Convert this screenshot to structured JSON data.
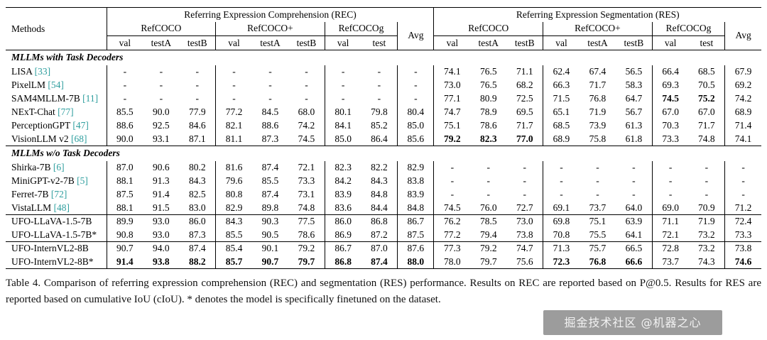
{
  "colors": {
    "cite": "#2e9e9e"
  },
  "table": {
    "header": {
      "methods": "Methods",
      "rec": "Referring Expression Comprehension (REC)",
      "res": "Referring Expression Segmentation (RES)",
      "groups": [
        "RefCOCO",
        "RefCOCO+",
        "RefCOCOg"
      ],
      "avg": "Avg",
      "subcols3": [
        "val",
        "testA",
        "testB"
      ],
      "subcols2": [
        "val",
        "test"
      ]
    },
    "sections": [
      {
        "title": "MLLMs with Task Decoders",
        "rows": [
          {
            "method": "LISA",
            "cite": "[33]",
            "bold": [],
            "cells": [
              "-",
              "-",
              "-",
              "-",
              "-",
              "-",
              "-",
              "-",
              "-",
              "74.1",
              "76.5",
              "71.1",
              "62.4",
              "67.4",
              "56.5",
              "66.4",
              "68.5",
              "67.9"
            ]
          },
          {
            "method": "PixelLM",
            "cite": "[54]",
            "bold": [],
            "cells": [
              "-",
              "-",
              "-",
              "-",
              "-",
              "-",
              "-",
              "-",
              "-",
              "73.0",
              "76.5",
              "68.2",
              "66.3",
              "71.7",
              "58.3",
              "69.3",
              "70.5",
              "69.2"
            ]
          },
          {
            "method": "SAM4MLLM-7B",
            "cite": "[11]",
            "bold": [
              15,
              16
            ],
            "cells": [
              "-",
              "-",
              "-",
              "-",
              "-",
              "-",
              "-",
              "-",
              "-",
              "77.1",
              "80.9",
              "72.5",
              "71.5",
              "76.8",
              "64.7",
              "74.5",
              "75.2",
              "74.2"
            ]
          },
          {
            "method": "NExT-Chat",
            "cite": "[77]",
            "bold": [],
            "cells": [
              "85.5",
              "90.0",
              "77.9",
              "77.2",
              "84.5",
              "68.0",
              "80.1",
              "79.8",
              "80.4",
              "74.7",
              "78.9",
              "69.5",
              "65.1",
              "71.9",
              "56.7",
              "67.0",
              "67.0",
              "68.9"
            ]
          },
          {
            "method": "PerceptionGPT",
            "cite": "[47]",
            "bold": [],
            "cells": [
              "88.6",
              "92.5",
              "84.6",
              "82.1",
              "88.6",
              "74.2",
              "84.1",
              "85.2",
              "85.0",
              "75.1",
              "78.6",
              "71.7",
              "68.5",
              "73.9",
              "61.3",
              "70.3",
              "71.7",
              "71.4"
            ]
          },
          {
            "method": "VisionLLM v2",
            "cite": "[68]",
            "bold": [
              9,
              10,
              11
            ],
            "cells": [
              "90.0",
              "93.1",
              "87.1",
              "81.1",
              "87.3",
              "74.5",
              "85.0",
              "86.4",
              "85.6",
              "79.2",
              "82.3",
              "77.0",
              "68.9",
              "75.8",
              "61.8",
              "73.3",
              "74.8",
              "74.1"
            ]
          }
        ]
      },
      {
        "title": "MLLMs w/o Task Decoders",
        "rows": [
          {
            "method": "Shirka-7B",
            "cite": "[6]",
            "bold": [],
            "cells": [
              "87.0",
              "90.6",
              "80.2",
              "81.6",
              "87.4",
              "72.1",
              "82.3",
              "82.2",
              "82.9",
              "-",
              "-",
              "-",
              "-",
              "-",
              "-",
              "-",
              "-",
              "-"
            ]
          },
          {
            "method": "MiniGPT-v2-7B",
            "cite": "[5]",
            "bold": [],
            "cells": [
              "88.1",
              "91.3",
              "84.3",
              "79.6",
              "85.5",
              "73.3",
              "84.2",
              "84.3",
              "83.8",
              "-",
              "-",
              "-",
              "-",
              "-",
              "-",
              "-",
              "-",
              "-"
            ]
          },
          {
            "method": "Ferret-7B",
            "cite": "[72]",
            "bold": [],
            "cells": [
              "87.5",
              "91.4",
              "82.5",
              "80.8",
              "87.4",
              "73.1",
              "83.9",
              "84.8",
              "83.9",
              "-",
              "-",
              "-",
              "-",
              "-",
              "-",
              "-",
              "-",
              "-"
            ]
          },
          {
            "method": "VistaLLM",
            "cite": "[48]",
            "bold": [],
            "cells": [
              "88.1",
              "91.5",
              "83.0",
              "82.9",
              "89.8",
              "74.8",
              "83.6",
              "84.4",
              "84.8",
              "74.5",
              "76.0",
              "72.7",
              "69.1",
              "73.7",
              "64.0",
              "69.0",
              "70.9",
              "71.2"
            ]
          }
        ]
      },
      {
        "title": null,
        "rows": [
          {
            "method": "UFO-LLaVA-1.5-7B",
            "cite": null,
            "bold": [],
            "cells": [
              "89.9",
              "93.0",
              "86.0",
              "84.3",
              "90.3",
              "77.5",
              "86.0",
              "86.8",
              "86.7",
              "76.2",
              "78.5",
              "73.0",
              "69.8",
              "75.1",
              "63.9",
              "71.1",
              "71.9",
              "72.4"
            ]
          },
          {
            "method": "UFO-LLaVA-1.5-7B*",
            "cite": null,
            "bold": [],
            "cells": [
              "90.8",
              "93.0",
              "87.3",
              "85.5",
              "90.5",
              "78.6",
              "86.9",
              "87.2",
              "87.5",
              "77.2",
              "79.4",
              "73.8",
              "70.8",
              "75.5",
              "64.1",
              "72.1",
              "73.2",
              "73.3"
            ]
          }
        ]
      },
      {
        "title": null,
        "rows": [
          {
            "method": "UFO-InternVL2-8B",
            "cite": null,
            "bold": [],
            "cells": [
              "90.7",
              "94.0",
              "87.4",
              "85.4",
              "90.1",
              "79.2",
              "86.7",
              "87.0",
              "87.6",
              "77.3",
              "79.2",
              "74.7",
              "71.3",
              "75.7",
              "66.5",
              "72.8",
              "73.2",
              "73.8"
            ]
          },
          {
            "method": "UFO-InternVL2-8B*",
            "cite": null,
            "bold": [
              0,
              1,
              2,
              3,
              4,
              5,
              6,
              7,
              8,
              12,
              13,
              14,
              17
            ],
            "cells": [
              "91.4",
              "93.8",
              "88.2",
              "85.7",
              "90.7",
              "79.7",
              "86.8",
              "87.4",
              "88.0",
              "78.0",
              "79.7",
              "75.6",
              "72.3",
              "76.8",
              "66.6",
              "73.7",
              "74.3",
              "74.6"
            ]
          }
        ]
      }
    ]
  },
  "caption": {
    "text": "Table 4. Comparison of referring expression comprehension (REC) and segmentation (RES) performance. Results on REC are reported based on P@0.5. Results for RES are reported based on cumulative IoU (cIoU). * denotes the model is specifically finetuned on the dataset."
  },
  "watermark": {
    "text": "掘金技术社区 @机器之心"
  }
}
